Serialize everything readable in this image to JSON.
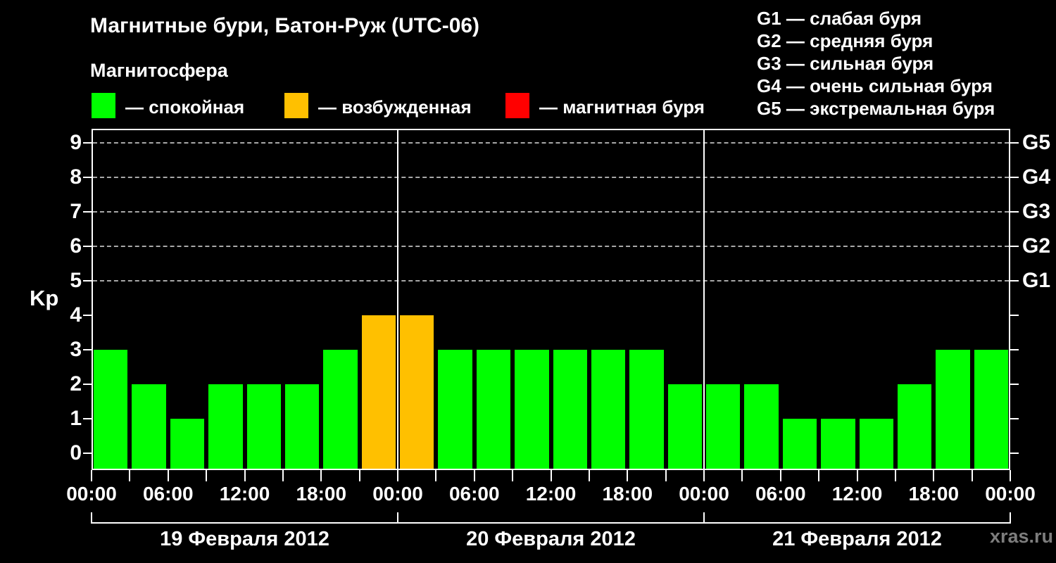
{
  "header": {
    "title": "Магнитные бури, Батон-Руж (UTC-06)",
    "subtitle": "Магнитосфера",
    "legend": [
      {
        "name": "quiet",
        "label": "— спокойная",
        "color": "#00ff00"
      },
      {
        "name": "excited",
        "label": "— возбужденная",
        "color": "#ffc000"
      },
      {
        "name": "storm",
        "label": "— магнитная буря",
        "color": "#ff0000"
      }
    ],
    "storm_scale": [
      {
        "code": "G1",
        "label": "G1 — слабая буря"
      },
      {
        "code": "G2",
        "label": "G2 — средняя буря"
      },
      {
        "code": "G3",
        "label": "G3 — сильная буря"
      },
      {
        "code": "G4",
        "label": "G4 — очень сильная буря"
      },
      {
        "code": "G5",
        "label": "G5 — экстремальная буря"
      }
    ]
  },
  "watermark": "xras.ru",
  "chart_data": {
    "type": "bar",
    "ylabel": "Kp",
    "ylim": [
      -0.5,
      9.4
    ],
    "yticks": [
      0,
      1,
      2,
      3,
      4,
      5,
      6,
      7,
      8,
      9
    ],
    "grid_levels": [
      5,
      6,
      7,
      8,
      9
    ],
    "grid_style": "dashed",
    "legend_position": "top",
    "right_axis": [
      {
        "label": "G5",
        "kp": 9
      },
      {
        "label": "G4",
        "kp": 8
      },
      {
        "label": "G3",
        "kp": 7
      },
      {
        "label": "G2",
        "kp": 6
      },
      {
        "label": "G1",
        "kp": 5
      }
    ],
    "x_tick_labels": [
      "00:00",
      "06:00",
      "12:00",
      "18:00",
      "00:00",
      "06:00",
      "12:00",
      "18:00",
      "00:00",
      "06:00",
      "12:00",
      "18:00",
      "00:00"
    ],
    "hours_per_bar": 3,
    "days": [
      {
        "date": "19 Февраля 2012",
        "kp_values": [
          3,
          2,
          1,
          2,
          2,
          2,
          3,
          4
        ]
      },
      {
        "date": "20 Февраля 2012",
        "kp_values": [
          4,
          3,
          3,
          3,
          3,
          3,
          3,
          2
        ]
      },
      {
        "date": "21 Февраля 2012",
        "kp_values": [
          2,
          2,
          1,
          1,
          1,
          2,
          3,
          3
        ]
      }
    ],
    "color_rules": {
      "quiet_max_kp": 3,
      "excited_max_kp": 4
    },
    "colors": {
      "quiet": "#00ff00",
      "excited": "#ffc000",
      "storm": "#ff0000"
    }
  }
}
